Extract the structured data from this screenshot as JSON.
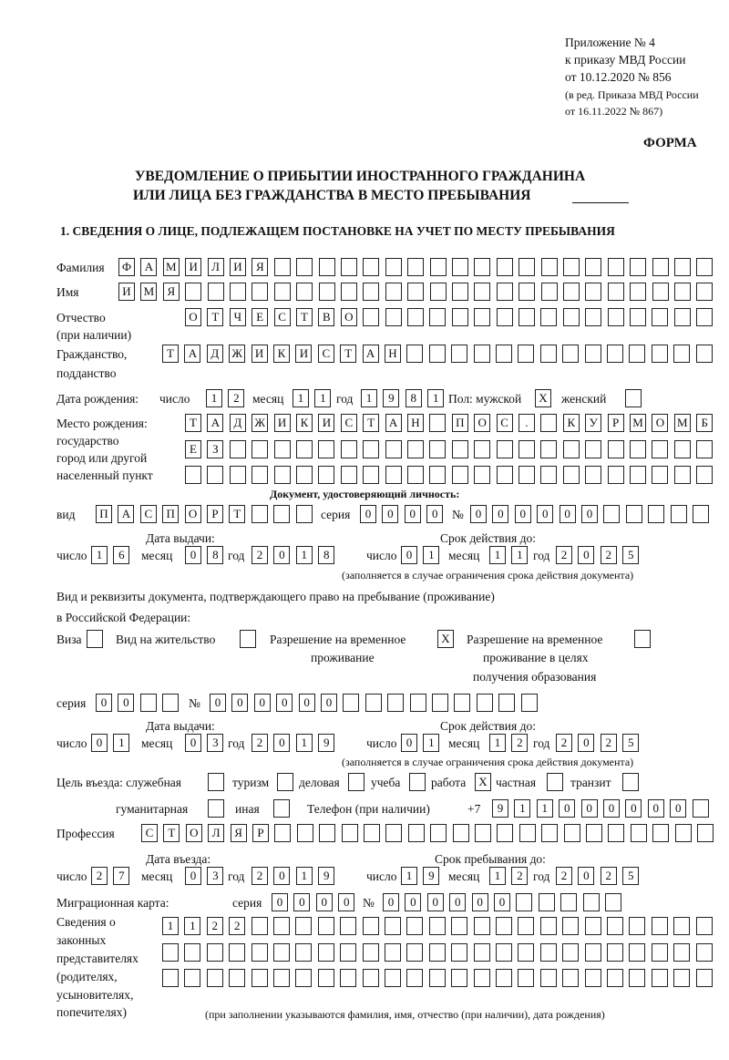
{
  "header": {
    "appendix": "Приложение № 4",
    "order": "к приказу МВД России",
    "order_date": "от 10.12.2020 № 856",
    "edition1": "(в ред. Приказа МВД России",
    "edition2": "от 16.11.2022 № 867)",
    "form": "ФОРМА",
    "title1": "УВЕДОМЛЕНИЕ О ПРИБЫТИИ ИНОСТРАННОГО ГРАЖДАНИНА",
    "title2": "ИЛИ ЛИЦА БЕЗ ГРАЖДАНСТВА В МЕСТО ПРЕБЫВАНИЯ",
    "section1": "1. СВЕДЕНИЯ О ЛИЦЕ, ПОДЛЕЖАЩЕМ ПОСТАНОВКЕ НА УЧЕТ ПО МЕСТУ ПРЕБЫВАНИЯ"
  },
  "labels": {
    "surname": "Фамилия",
    "name": "Имя",
    "patronymic1": "Отчество",
    "patronymic2": "(при наличии)",
    "citizenship1": "Гражданство,",
    "citizenship2": "подданство",
    "birth_date": "Дата рождения:",
    "day": "число",
    "month": "месяц",
    "year": "год",
    "sex": "Пол: мужской",
    "female": "женский",
    "birthplace1": "Место рождения:",
    "birthplace2": "государство",
    "birthplace3": "город или другой",
    "birthplace4": "населенный пункт",
    "id_doc": "Документ, удостоверяющий личность:",
    "kind": "вид",
    "series": "серия",
    "number": "№",
    "issue_date": "Дата выдачи:",
    "valid_until": "Срок действия до:",
    "validity_note": "(заполняется в случае ограничения срока действия документа)",
    "permit_doc1": "Вид и реквизиты документа, подтверждающего право на пребывание (проживание)",
    "permit_doc2": "в Российской Федерации:",
    "visa": "Виза",
    "residence": "Вид на жительство",
    "trp1": "Разрешение на временное",
    "trp2": "проживание",
    "trp_edu1": "Разрешение на временное",
    "trp_edu2": "проживание в целях",
    "trp_edu3": "получения образования",
    "purpose": "Цель въезда: служебная",
    "tourism": "туризм",
    "business": "деловая",
    "study": "учеба",
    "work": "работа",
    "private": "частная",
    "transit": "транзит",
    "humanitarian": "гуманитарная",
    "other": "иная",
    "phone": "Телефон (при наличии)",
    "phone_prefix": "+7",
    "profession": "Профессия",
    "entry_date": "Дата въезда:",
    "stay_until": "Срок пребывания до:",
    "migration_card": "Миграционная карта:",
    "reps1": "Сведения о",
    "reps2": "законных",
    "reps3": "представителях",
    "reps4": "(родителях,",
    "reps5": "усыновителях,",
    "reps6": "попечителях)",
    "reps_note": "(при заполнении указываются фамилия, имя, отчество (при наличии), дата рождения)"
  },
  "values": {
    "surname": "ФАМИЛИЯ",
    "name": "ИМЯ",
    "patronymic": "ОТЧЕСТВО",
    "citizenship": "ТАДЖИКИСТАН",
    "birth_day": "12",
    "birth_month": "11",
    "birth_year": "1981",
    "sex_male": "X",
    "sex_female": "",
    "birthplace1": "ТАДЖИКИСТАН ПОС. КУРМОМБ",
    "birthplace2": "ЕЗ",
    "birthplace3": "",
    "doc_kind": "ПАСПОРТ",
    "doc_series": "0000",
    "doc_number": "000000",
    "doc_issue_day": "16",
    "doc_issue_month": "08",
    "doc_issue_year": "2018",
    "doc_valid_day": "01",
    "doc_valid_month": "11",
    "doc_valid_year": "2025",
    "visa": "",
    "residence": "",
    "trp": "X",
    "trp_edu": "",
    "permit_series": "00",
    "permit_number": "000000",
    "permit_issue_day": "01",
    "permit_issue_month": "03",
    "permit_issue_year": "2019",
    "permit_valid_day": "01",
    "permit_valid_month": "12",
    "permit_valid_year": "2025",
    "purpose_service": "",
    "purpose_tourism": "",
    "purpose_business": "",
    "purpose_study": "",
    "purpose_work": "X",
    "purpose_private": "",
    "purpose_transit": "",
    "purpose_humanitarian": "",
    "purpose_other": "",
    "phone": "911000000",
    "profession": "СТОЛЯР",
    "entry_day": "27",
    "entry_month": "03",
    "entry_year": "2019",
    "stay_day": "19",
    "stay_month": "12",
    "stay_year": "2025",
    "mc_series": "0000",
    "mc_number": "000000",
    "reps1": "1122",
    "reps2": "",
    "reps3": ""
  }
}
